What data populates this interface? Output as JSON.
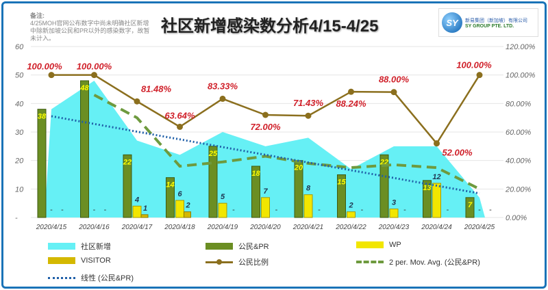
{
  "note": {
    "heading": "备注:",
    "body": "4/25MOH官网公布数字中尚未明确社区新增中除新加坡公民和PR以外的感染数字，故暂未计入。"
  },
  "logo": {
    "mark": "SY",
    "cn": "新易集团（新加坡）有限公司",
    "en": "SY GROUP PTE. LTD."
  },
  "colors": {
    "area": "#66f0f5",
    "citizen": "#6b8e23",
    "wp": "#f2e600",
    "visitor": "#d4b800",
    "ratio": "#8b6f1e",
    "mavg": "#6e9a3e",
    "trend": "#1f5fa8",
    "pct": "#d0202a"
  },
  "chart_data": {
    "type": "bar",
    "title": "社区新增感染数分析4/15-4/25",
    "categories": [
      "2020/4/15",
      "2020/4/16",
      "2020/4/17",
      "2020/4/18",
      "2020/4/19",
      "2020/4/20",
      "2020/4/21",
      "2020/4/22",
      "2020/4/23",
      "2020/4/24",
      "2020/4/25"
    ],
    "ylim": [
      0,
      60
    ],
    "yticks": [
      "-",
      "10",
      "20",
      "30",
      "40",
      "50",
      "60"
    ],
    "y2lim": [
      0,
      1.2
    ],
    "y2ticks": [
      "0.00%",
      "20.00%",
      "40.00%",
      "60.00%",
      "80.00%",
      "100.00%",
      "120.00%"
    ],
    "series": [
      {
        "name": "社区新增",
        "type": "area",
        "values": [
          38,
          48,
          27,
          22,
          30,
          25,
          28,
          17,
          25,
          25,
          7
        ]
      },
      {
        "name": "公民&PR",
        "type": "bar",
        "values": [
          38,
          48,
          22,
          14,
          25,
          18,
          20,
          15,
          22,
          13,
          7
        ]
      },
      {
        "name": "WP",
        "type": "bar",
        "values": [
          0,
          0,
          4,
          6,
          5,
          7,
          8,
          2,
          3,
          12,
          0
        ]
      },
      {
        "name": "VISITOR",
        "type": "bar",
        "values": [
          0,
          0,
          1,
          2,
          0,
          0,
          0,
          0,
          0,
          0,
          0
        ]
      },
      {
        "name": "公民比例",
        "type": "line",
        "axis": "secondary",
        "values": [
          1,
          1,
          0.8148,
          0.6364,
          0.8333,
          0.72,
          0.7143,
          0.8824,
          0.88,
          0.52,
          1
        ]
      },
      {
        "name": "2 per. Mov. Avg. (公民&PR)",
        "type": "line"
      },
      {
        "name": "线性 (公民&PR)",
        "type": "line"
      }
    ],
    "ratio_labels": [
      "100.00%",
      "100.00%",
      "81.48%",
      "63.64%",
      "83.33%",
      "72.00%",
      "71.43%",
      "88.24%",
      "88.00%",
      "52.00%",
      "100.00%"
    ]
  }
}
